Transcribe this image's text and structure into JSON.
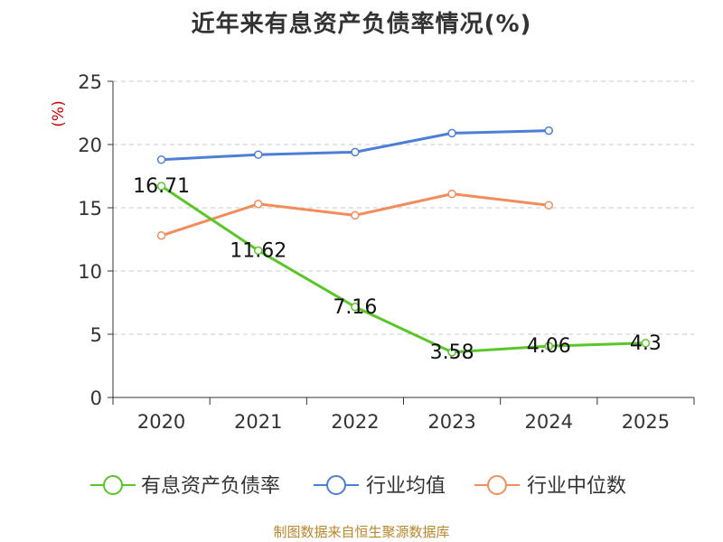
{
  "chart_data": {
    "type": "line",
    "title": "近年来有息资产负债率情况(%)",
    "ylabel": "(%)",
    "xlabel": "",
    "categories": [
      "2020",
      "2021",
      "2022",
      "2023",
      "2024",
      "2025"
    ],
    "ylim": [
      0,
      25
    ],
    "yticks": [
      0,
      5,
      10,
      15,
      20,
      25
    ],
    "grid": true,
    "legend_position": "bottom",
    "series": [
      {
        "name": "有息资产负债率",
        "color": "#5ac629",
        "values": [
          16.71,
          11.62,
          7.16,
          3.58,
          4.06,
          4.3
        ],
        "labels": [
          "16.71",
          "11.62",
          "7.16",
          "3.58",
          "4.06",
          "4.3"
        ]
      },
      {
        "name": "行业均值",
        "color": "#4d7fd6",
        "values": [
          18.8,
          19.2,
          19.4,
          20.9,
          21.1,
          null
        ]
      },
      {
        "name": "行业中位数",
        "color": "#f28c5d",
        "values": [
          12.8,
          15.3,
          14.4,
          16.1,
          15.2,
          null
        ]
      }
    ]
  },
  "footer": {
    "source": "制图数据来自恒生聚源数据库"
  }
}
